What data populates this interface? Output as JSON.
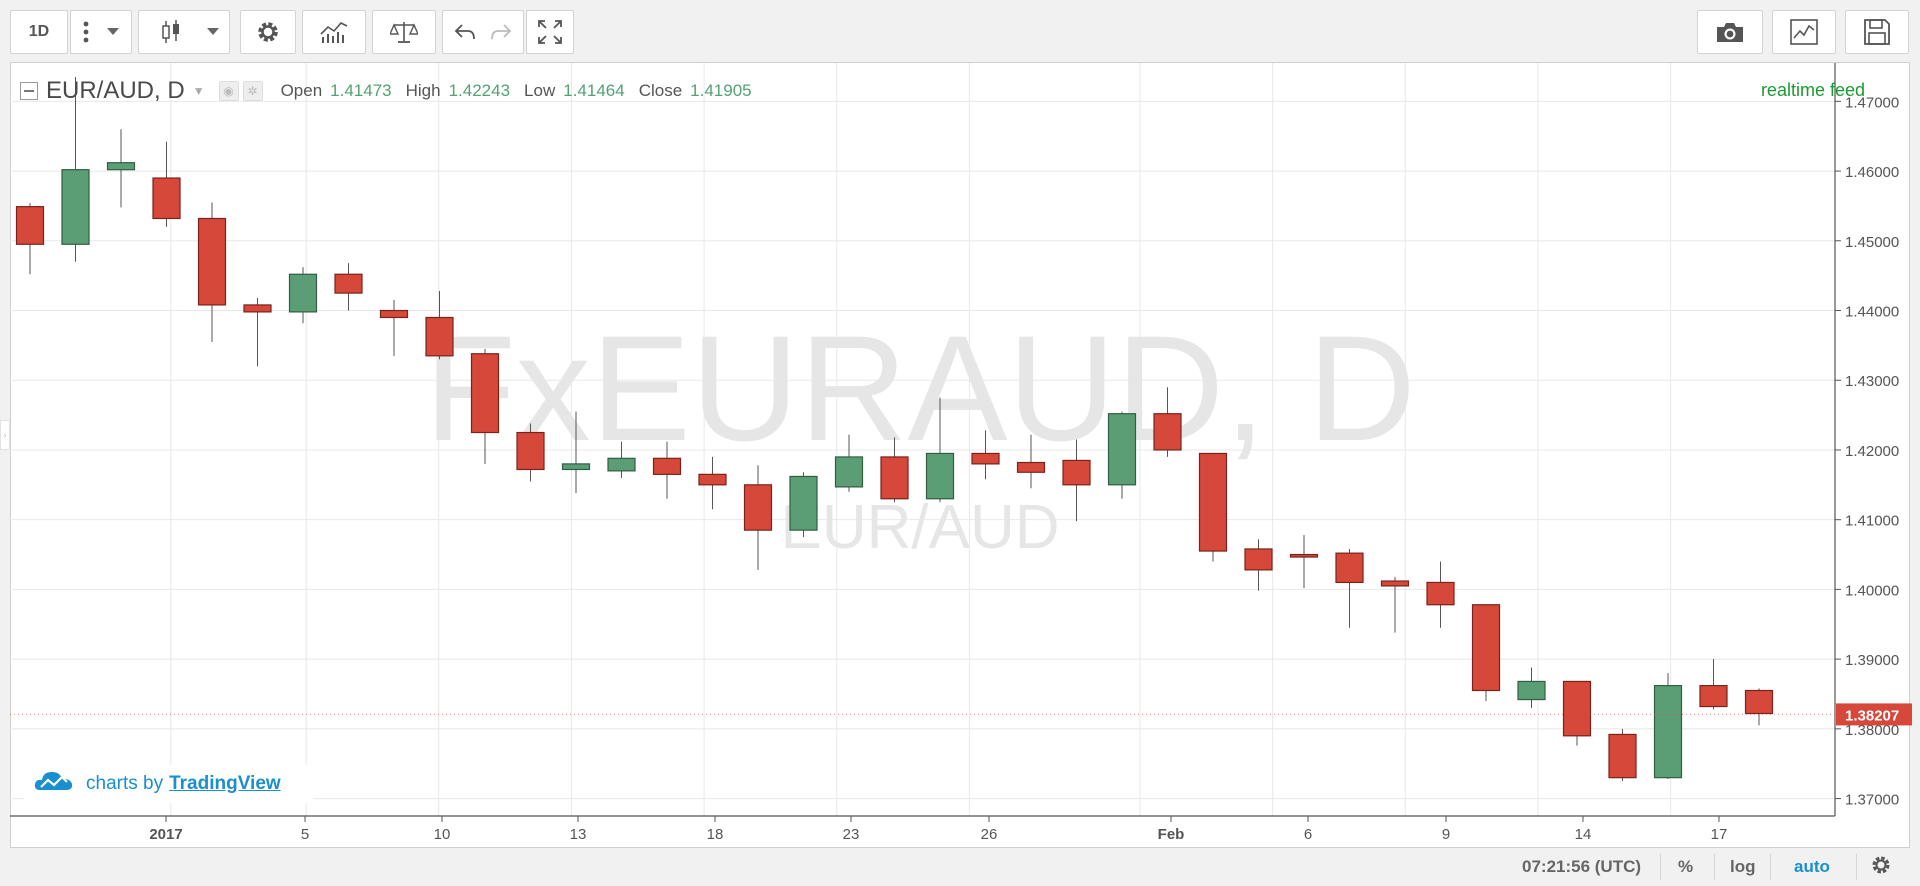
{
  "toolbar": {
    "interval_label": "1D",
    "buttons": [
      "more-menu",
      "chart-style",
      "settings",
      "indicators",
      "compare",
      "undo",
      "redo",
      "fullscreen",
      "snapshot",
      "templates",
      "save"
    ]
  },
  "legend": {
    "symbol": "EUR/AUD, D",
    "open_label": "Open",
    "open_value": "1.41473",
    "high_label": "High",
    "high_value": "1.42243",
    "low_label": "Low",
    "low_value": "1.41464",
    "close_label": "Close",
    "close_value": "1.41905"
  },
  "realtime_label": "realtime feed",
  "watermark": {
    "main": "FxEURAUD, D",
    "sub": "EUR/AUD"
  },
  "credit": {
    "prefix": "charts by",
    "brand": "TradingView"
  },
  "statusbar": {
    "time": "07:21:56 (UTC)",
    "percent": "%",
    "log": "log",
    "auto": "auto"
  },
  "colors": {
    "up": "#5b9e76",
    "down": "#d6483a",
    "realtime": "#1a9a32",
    "auto": "#1a8fd0"
  },
  "chart_data": {
    "type": "candlestick",
    "symbol": "EUR/AUD",
    "interval": "D",
    "ylim": [
      1.3675,
      1.4755
    ],
    "y_ticks": [
      "1.47000",
      "1.46000",
      "1.45000",
      "1.44000",
      "1.43000",
      "1.42000",
      "1.41000",
      "1.40000",
      "1.39000",
      "1.38000",
      "1.37000"
    ],
    "x_ticks": [
      "2017",
      "5",
      "10",
      "13",
      "18",
      "23",
      "26",
      "Feb",
      "6",
      "9",
      "14",
      "17"
    ],
    "last_price": "1.38207",
    "candles": [
      {
        "o": 1.4549,
        "h": 1.4554,
        "l": 1.4452,
        "c": 1.4495
      },
      {
        "o": 1.4495,
        "h": 1.4735,
        "l": 1.447,
        "c": 1.4602
      },
      {
        "o": 1.4602,
        "h": 1.466,
        "l": 1.4548,
        "c": 1.4612
      },
      {
        "o": 1.459,
        "h": 1.4642,
        "l": 1.452,
        "c": 1.4532
      },
      {
        "o": 1.4532,
        "h": 1.4555,
        "l": 1.4355,
        "c": 1.4408
      },
      {
        "o": 1.4408,
        "h": 1.4418,
        "l": 1.432,
        "c": 1.4398
      },
      {
        "o": 1.4398,
        "h": 1.4462,
        "l": 1.4382,
        "c": 1.4452
      },
      {
        "o": 1.4452,
        "h": 1.4468,
        "l": 1.44,
        "c": 1.4425
      },
      {
        "o": 1.44,
        "h": 1.4415,
        "l": 1.4335,
        "c": 1.439
      },
      {
        "o": 1.439,
        "h": 1.4428,
        "l": 1.433,
        "c": 1.4335
      },
      {
        "o": 1.4338,
        "h": 1.4345,
        "l": 1.418,
        "c": 1.4225
      },
      {
        "o": 1.4225,
        "h": 1.4238,
        "l": 1.4155,
        "c": 1.4172
      },
      {
        "o": 1.4172,
        "h": 1.4255,
        "l": 1.4138,
        "c": 1.418
      },
      {
        "o": 1.417,
        "h": 1.4212,
        "l": 1.416,
        "c": 1.4188
      },
      {
        "o": 1.4188,
        "h": 1.4212,
        "l": 1.413,
        "c": 1.4165
      },
      {
        "o": 1.4165,
        "h": 1.419,
        "l": 1.4115,
        "c": 1.415
      },
      {
        "o": 1.415,
        "h": 1.4178,
        "l": 1.4028,
        "c": 1.4085
      },
      {
        "o": 1.4085,
        "h": 1.4168,
        "l": 1.4075,
        "c": 1.4162
      },
      {
        "o": 1.4147,
        "h": 1.4222,
        "l": 1.414,
        "c": 1.419
      },
      {
        "o": 1.419,
        "h": 1.4218,
        "l": 1.4125,
        "c": 1.413
      },
      {
        "o": 1.413,
        "h": 1.4275,
        "l": 1.4125,
        "c": 1.4195
      },
      {
        "o": 1.4195,
        "h": 1.4228,
        "l": 1.4158,
        "c": 1.418
      },
      {
        "o": 1.4182,
        "h": 1.4222,
        "l": 1.4145,
        "c": 1.4168
      },
      {
        "o": 1.4185,
        "h": 1.4215,
        "l": 1.4098,
        "c": 1.415
      },
      {
        "o": 1.415,
        "h": 1.4255,
        "l": 1.413,
        "c": 1.4252
      },
      {
        "o": 1.4252,
        "h": 1.429,
        "l": 1.419,
        "c": 1.42
      },
      {
        "o": 1.4195,
        "h": 1.4195,
        "l": 1.404,
        "c": 1.4055
      },
      {
        "o": 1.4058,
        "h": 1.4072,
        "l": 1.3998,
        "c": 1.4028
      },
      {
        "o": 1.405,
        "h": 1.4078,
        "l": 1.4002,
        "c": 1.4048
      },
      {
        "o": 1.4052,
        "h": 1.4058,
        "l": 1.3945,
        "c": 1.401
      },
      {
        "o": 1.4012,
        "h": 1.4018,
        "l": 1.3938,
        "c": 1.4005
      },
      {
        "o": 1.401,
        "h": 1.404,
        "l": 1.3945,
        "c": 1.3978
      },
      {
        "o": 1.3978,
        "h": 1.3978,
        "l": 1.384,
        "c": 1.3855
      },
      {
        "o": 1.3842,
        "h": 1.3888,
        "l": 1.383,
        "c": 1.3868
      },
      {
        "o": 1.3868,
        "h": 1.3868,
        "l": 1.3776,
        "c": 1.379
      },
      {
        "o": 1.3792,
        "h": 1.38,
        "l": 1.3725,
        "c": 1.373
      },
      {
        "o": 1.373,
        "h": 1.388,
        "l": 1.3728,
        "c": 1.3862
      },
      {
        "o": 1.3862,
        "h": 1.39,
        "l": 1.3828,
        "c": 1.3832
      },
      {
        "o": 1.3855,
        "h": 1.3858,
        "l": 1.3805,
        "c": 1.3822
      }
    ]
  }
}
